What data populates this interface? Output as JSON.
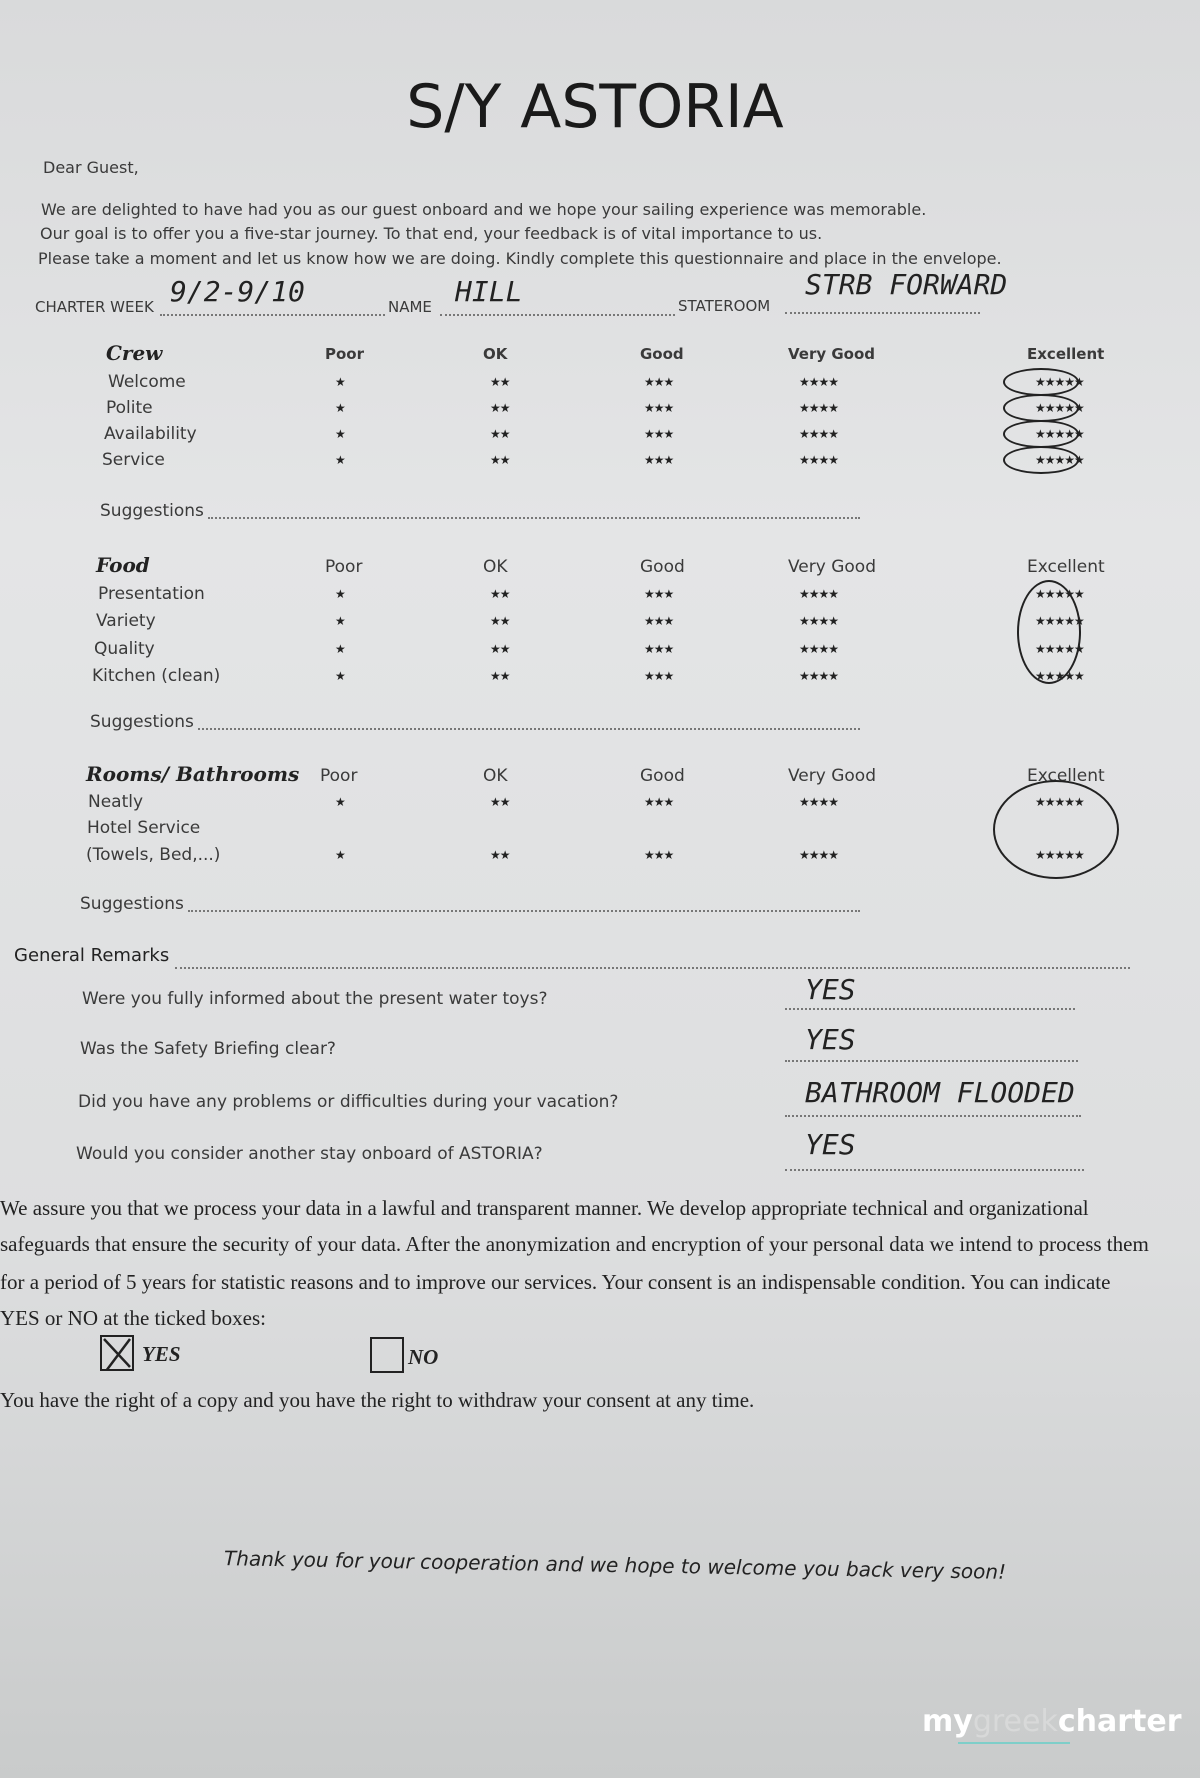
{
  "title": "S/Y ASTORIA",
  "greeting": "Dear Guest,",
  "intro": [
    "We are delighted to have had you as our guest onboard and we hope your sailing experience was memorable.",
    "Our goal is to offer you a five-star journey. To that end, your feedback is of vital importance to us.",
    "Please take a moment and let us know how we are doing. Kindly complete this questionnaire and place in the envelope."
  ],
  "fields": {
    "charter_week_label": "CHARTER WEEK",
    "charter_week": "9/2-9/10",
    "name_label": "NAME",
    "name": "HILL",
    "stateroom_label": "STATEROOM",
    "stateroom": "STRB FORWARD"
  },
  "ratings": {
    "poor": "Poor",
    "ok": "OK",
    "good": "Good",
    "very_good": "Very Good",
    "excellent": "Excellent",
    "stars": [
      "★",
      "★★",
      "★★★",
      "★★★★",
      "★★★★★"
    ]
  },
  "crew": {
    "title": "Crew",
    "items": [
      "Welcome",
      "Polite",
      "Availability",
      "Service"
    ],
    "selected": "Excellent"
  },
  "food": {
    "title": "Food",
    "items": [
      "Presentation",
      "Variety",
      "Quality",
      "Kitchen (clean)"
    ],
    "selected": "Excellent"
  },
  "rooms": {
    "title": "Rooms/ Bathrooms",
    "items": [
      "Neatly",
      "Hotel Service",
      "(Towels, Bed,...)"
    ],
    "selected": "Excellent"
  },
  "suggestions_label": "Suggestions",
  "general_remarks_label": "General Remarks",
  "questions": [
    {
      "q": "Were you fully informed about the present water toys?",
      "a": "YES"
    },
    {
      "q": "Was the Safety Briefing clear?",
      "a": "YES"
    },
    {
      "q": "Did you have any problems or difficulties during your vacation?",
      "a": "BATHROOM FLOODED"
    },
    {
      "q": "Would you consider another stay onboard of ASTORIA?",
      "a": "YES"
    }
  ],
  "consent": [
    "We assure you that we process your data in a lawful and transparent manner. We develop appropriate technical and organizational",
    "safeguards that ensure the security of your data. After the anonymization and encryption of your personal data we intend to process them",
    "for a period of 5 years for statistic reasons and to improve our services. Your consent is an indispensable condition. You can indicate",
    "YES or NO at the ticked boxes:"
  ],
  "consent_yes": "YES",
  "consent_no": "NO",
  "consent_choice": "YES",
  "withdraw": "You have the right of a copy and you have the right to withdraw your consent at any time.",
  "thanks": "Thank you for your cooperation and we hope to welcome you back very soon!",
  "watermark": {
    "my": "my",
    "greek": "greek",
    "charter": "charter",
    "accent": "#5ecfc8"
  }
}
